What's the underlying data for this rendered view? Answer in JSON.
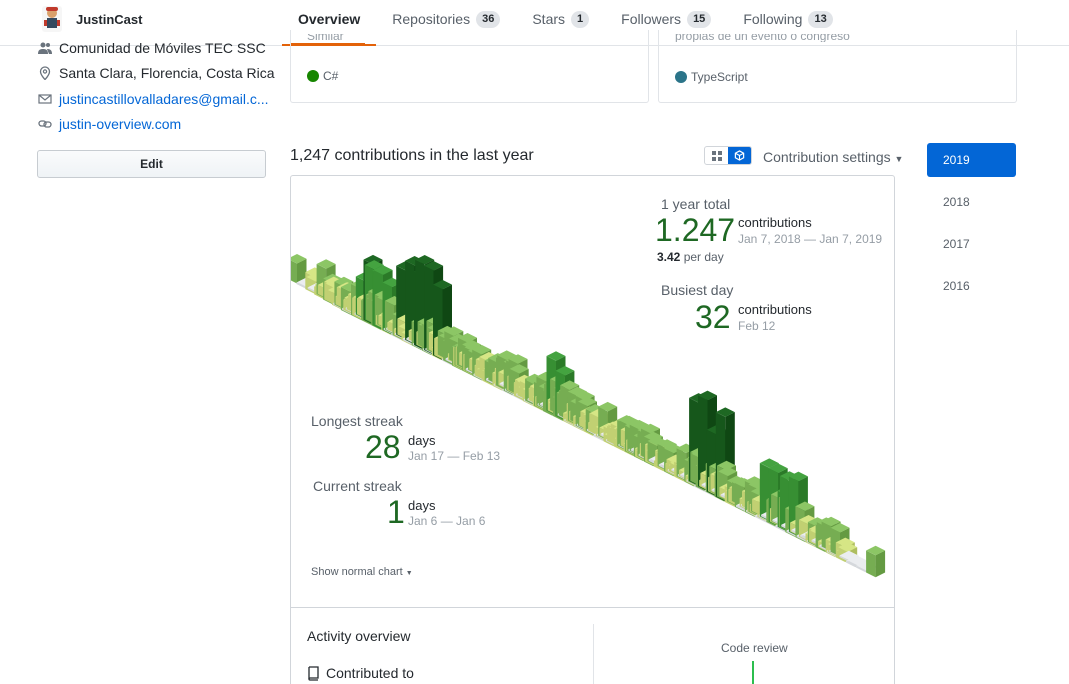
{
  "header": {
    "username": "JustinCast",
    "tabs": [
      {
        "label": "Overview",
        "count": null
      },
      {
        "label": "Repositories",
        "count": "36"
      },
      {
        "label": "Stars",
        "count": "1"
      },
      {
        "label": "Followers",
        "count": "15"
      },
      {
        "label": "Following",
        "count": "13"
      }
    ]
  },
  "sidebar": {
    "org": "Comunidad de Móviles TEC SSC",
    "location": "Santa Clara, Florencia, Costa Rica",
    "email": "justincastillovalladares@gmail.c...",
    "website": "justin-overview.com",
    "edit_label": "Edit"
  },
  "repo_cards": [
    {
      "cut_text": "Similar",
      "language": "C#",
      "language_color": "#178600"
    },
    {
      "cut_text": "propias de un evento o congreso",
      "language": "TypeScript",
      "language_color": "#2b7489"
    }
  ],
  "contributions": {
    "title": "1,247 contributions in the last year",
    "settings_label": "Contribution settings",
    "years": [
      "2019",
      "2018",
      "2017",
      "2016"
    ],
    "active_year": "2019",
    "total_label": "1 year total",
    "total_value": "1.247",
    "total_unit": "contributions",
    "total_range": "Jan 7, 2018 — Jan 7, 2019",
    "per_day_value": "3.42",
    "per_day_unit": "per day",
    "busiest_label": "Busiest day",
    "busiest_value": "32",
    "busiest_unit": "contributions",
    "busiest_date": "Feb 12",
    "longest_label": "Longest streak",
    "longest_value": "28",
    "longest_unit": "days",
    "longest_range": "Jan 17 — Feb 13",
    "current_label": "Current streak",
    "current_value": "1",
    "current_unit": "days",
    "current_range": "Jan 6 — Jan 6",
    "show_normal": "Show normal chart",
    "colors": {
      "empty": "#ebedf0",
      "l1": "#d6e685",
      "l2": "#8cc665",
      "l3": "#44a340",
      "l4": "#1e6823"
    }
  },
  "activity": {
    "title": "Activity overview",
    "contributed_to": "Contributed to",
    "code_review": "Code review"
  }
}
